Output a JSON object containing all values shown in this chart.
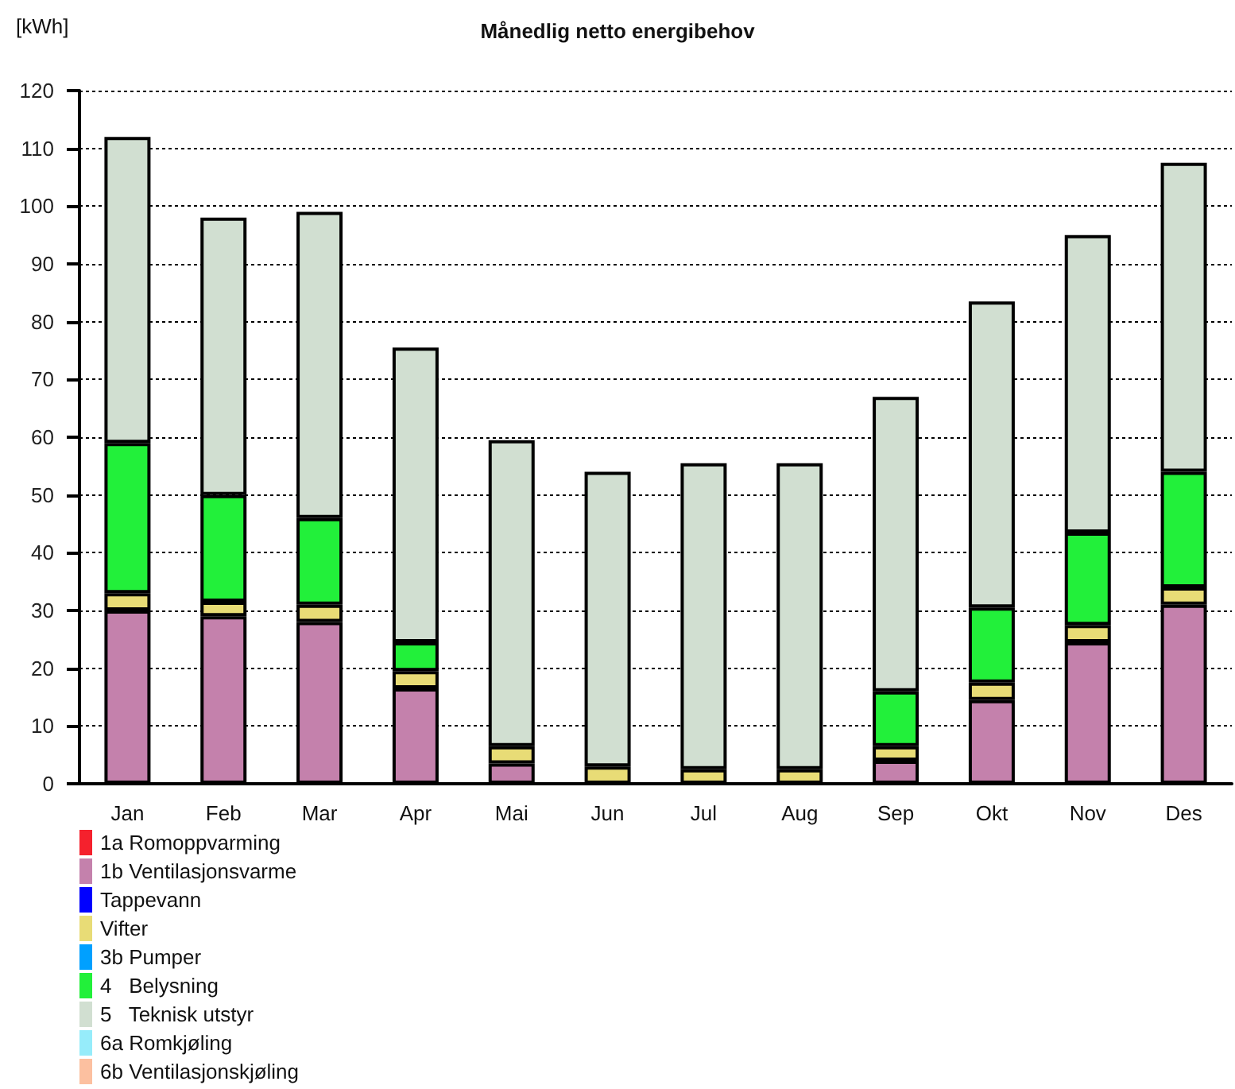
{
  "chart_data": {
    "type": "bar",
    "title": "Månedlig netto energibehov",
    "ylabel": "[kWh]",
    "categories": [
      "Jan",
      "Feb",
      "Mar",
      "Apr",
      "Mai",
      "Jun",
      "Jul",
      "Aug",
      "Sep",
      "Okt",
      "Nov",
      "Des"
    ],
    "stacked": true,
    "series": [
      {
        "name": "1a Romoppvarming",
        "color": "#f5212d",
        "values": [
          0,
          0,
          0,
          0,
          0,
          0,
          0,
          0,
          0,
          0,
          0,
          0
        ]
      },
      {
        "name": "1b Ventilasjonsvarme",
        "color": "#c481ac",
        "values": [
          30,
          29,
          28,
          16.5,
          3.5,
          0,
          0,
          0,
          4,
          14.5,
          24.5,
          31
        ]
      },
      {
        "name": "Tappevann",
        "color": "#0000ff",
        "values": [
          0,
          0,
          0,
          0,
          0,
          0,
          0,
          0,
          0,
          0,
          0,
          0
        ]
      },
      {
        "name": "Vifter",
        "color": "#e8dc76",
        "values": [
          3,
          2.5,
          3,
          3,
          3,
          3,
          2.5,
          2.5,
          2.5,
          3,
          3,
          3
        ]
      },
      {
        "name": "3b Pumper",
        "color": "#00a0ff",
        "values": [
          0,
          0,
          0,
          0,
          0,
          0,
          0,
          0,
          0,
          0,
          0,
          0
        ]
      },
      {
        "name": "4   Belysning",
        "color": "#22f03a",
        "values": [
          26,
          18.5,
          15,
          5,
          0,
          0,
          0,
          0,
          9.5,
          13,
          16,
          20
        ]
      },
      {
        "name": "5   Teknisk utstyr",
        "color": "#d1dfd1",
        "values": [
          53,
          48,
          53,
          51,
          53,
          51,
          53,
          53,
          51,
          53,
          51.5,
          53.5
        ]
      },
      {
        "name": "6a Romkjøling",
        "color": "#96ecfa",
        "values": [
          0,
          0,
          0,
          0,
          0,
          0,
          0,
          0,
          0,
          0,
          0,
          0
        ]
      },
      {
        "name": "6b Ventilasjonskjøling",
        "color": "#fcc0a0",
        "values": [
          0,
          0,
          0,
          0,
          0,
          0,
          0,
          0,
          0,
          0,
          0,
          0
        ]
      }
    ],
    "ylim": [
      0,
      120
    ],
    "yticks": [
      0,
      10,
      20,
      30,
      40,
      50,
      60,
      70,
      80,
      90,
      100,
      110,
      120
    ],
    "grid": "y",
    "legend": "bottom left"
  }
}
